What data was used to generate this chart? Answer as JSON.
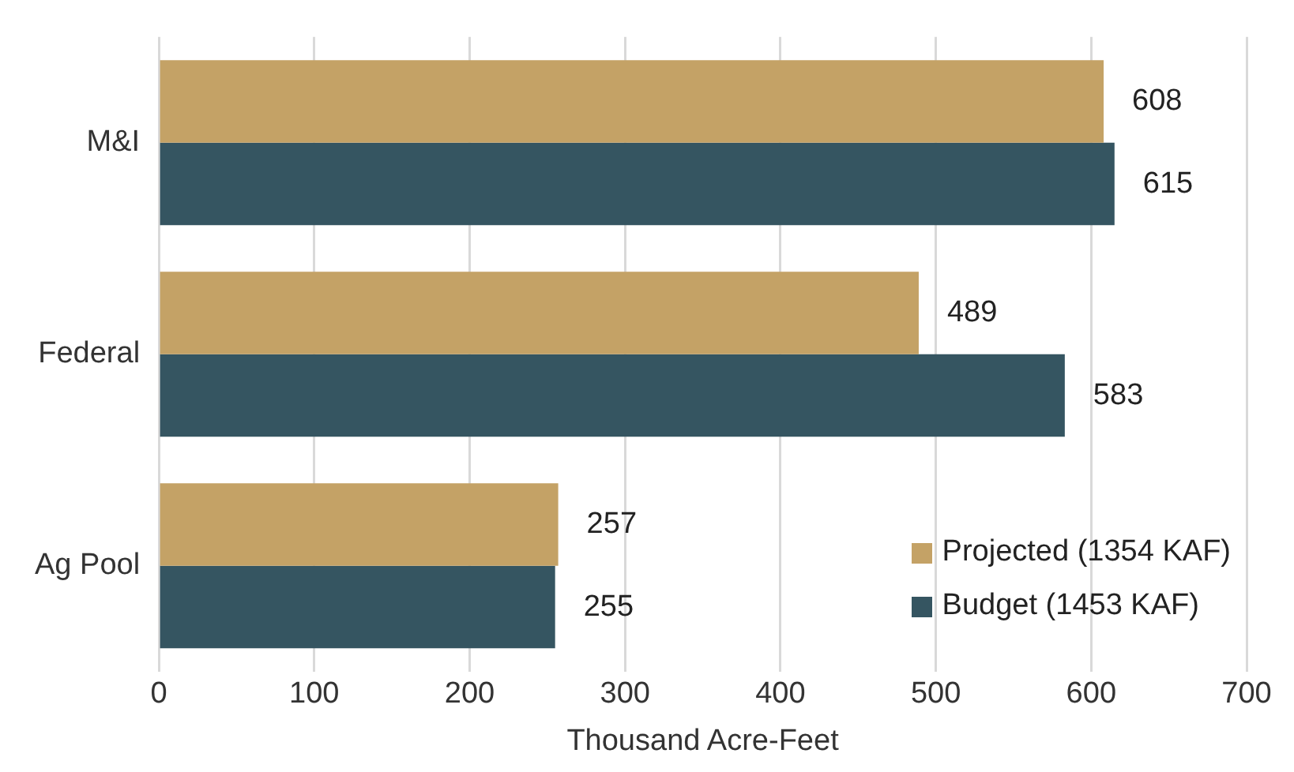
{
  "chart_data": {
    "type": "bar",
    "orientation": "horizontal",
    "xlabel": "Thousand Acre-Feet",
    "categories": [
      "M&I",
      "Federal",
      "Ag Pool"
    ],
    "series": [
      {
        "name": "Projected (1354 KAF)",
        "color": "#c4a266",
        "values": [
          608,
          489,
          257
        ]
      },
      {
        "name": "Budget (1453 KAF)",
        "color": "#355561",
        "values": [
          615,
          583,
          255
        ]
      }
    ],
    "xlim": [
      0,
      700
    ],
    "xticks": [
      0,
      100,
      200,
      300,
      400,
      500,
      600,
      700
    ],
    "grid": "x",
    "legend": "bottom right",
    "data_labels": true
  }
}
